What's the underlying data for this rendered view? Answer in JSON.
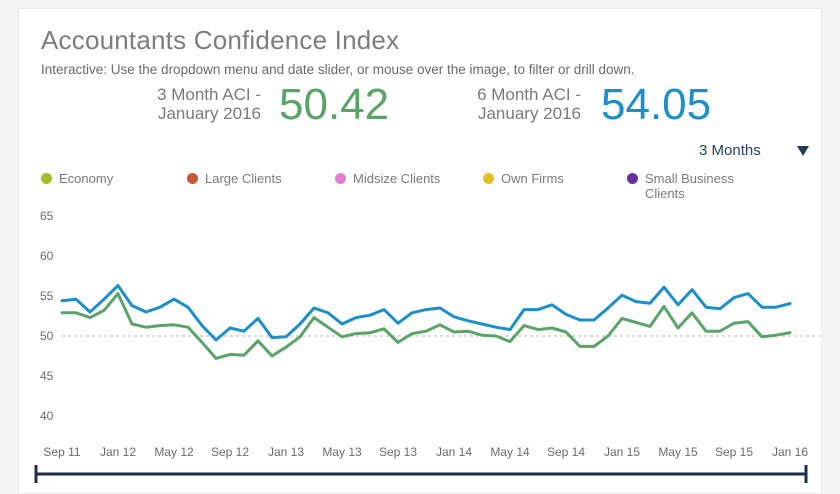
{
  "header": {
    "title": "Accountants Confidence Index",
    "subtitle": "Interactive: Use the dropdown menu and date slider, or mouse over the image, to filter or drill down."
  },
  "kpis": [
    {
      "label_line1": "3 Month ACI -",
      "label_line2": "January 2016",
      "value": "50.42",
      "color": "#5aa468"
    },
    {
      "label_line1": "6 Month ACI -",
      "label_line2": "January 2016",
      "value": "54.05",
      "color": "#1b8fc9"
    }
  ],
  "dropdown": {
    "selected": "3 Months"
  },
  "legend": [
    {
      "label": "Economy",
      "color": "#a6bd2a"
    },
    {
      "label": "Large Clients",
      "color": "#c9573b"
    },
    {
      "label": "Midsize Clients",
      "color": "#e47ed0"
    },
    {
      "label": "Own Firms",
      "color": "#e3c21f"
    },
    {
      "label": "Small Business Clients",
      "color": "#6a2e9b"
    }
  ],
  "chart_data": {
    "type": "line",
    "title": "Accountants Confidence Index",
    "xlabel": "",
    "ylabel": "",
    "ylim": [
      40,
      65
    ],
    "yticks": [
      40,
      45,
      50,
      55,
      60,
      65
    ],
    "reference_line": 50,
    "x_tick_labels": [
      "Sep 11",
      "Jan 12",
      "May 12",
      "Sep 12",
      "Jan 13",
      "May 13",
      "Sep 13",
      "Jan 14",
      "May 14",
      "Sep 14",
      "Jan 15",
      "May 15",
      "Sep 15",
      "Jan 16"
    ],
    "series": [
      {
        "name": "6 Month ACI",
        "color": "#1b8fc9",
        "values": [
          54.4,
          54.6,
          53.0,
          54.6,
          56.3,
          53.8,
          53.0,
          53.6,
          54.6,
          53.6,
          51.3,
          49.5,
          51.0,
          50.6,
          52.2,
          49.8,
          49.9,
          51.5,
          53.5,
          52.9,
          51.5,
          52.3,
          52.6,
          53.3,
          51.6,
          52.9,
          53.3,
          53.5,
          52.4,
          51.9,
          51.5,
          51.1,
          50.8,
          53.3,
          53.3,
          53.9,
          52.7,
          52.0,
          52.0,
          53.5,
          55.1,
          54.3,
          54.1,
          56.1,
          53.9,
          55.8,
          53.6,
          53.4,
          54.8,
          55.3,
          53.6,
          53.6,
          54.05
        ]
      },
      {
        "name": "3 Month ACI",
        "color": "#5aa468",
        "values": [
          52.9,
          52.9,
          52.3,
          53.2,
          55.3,
          51.5,
          51.1,
          51.3,
          51.4,
          51.1,
          49.2,
          47.2,
          47.7,
          47.6,
          49.4,
          47.5,
          48.6,
          49.9,
          52.3,
          51.1,
          49.9,
          50.3,
          50.4,
          50.9,
          49.2,
          50.3,
          50.6,
          51.4,
          50.5,
          50.6,
          50.1,
          50.0,
          49.3,
          51.3,
          50.8,
          51.0,
          50.5,
          48.7,
          48.7,
          50.0,
          52.2,
          51.7,
          51.2,
          53.7,
          51.0,
          52.9,
          50.6,
          50.6,
          51.6,
          51.8,
          49.9,
          50.1,
          50.42
        ]
      }
    ]
  }
}
